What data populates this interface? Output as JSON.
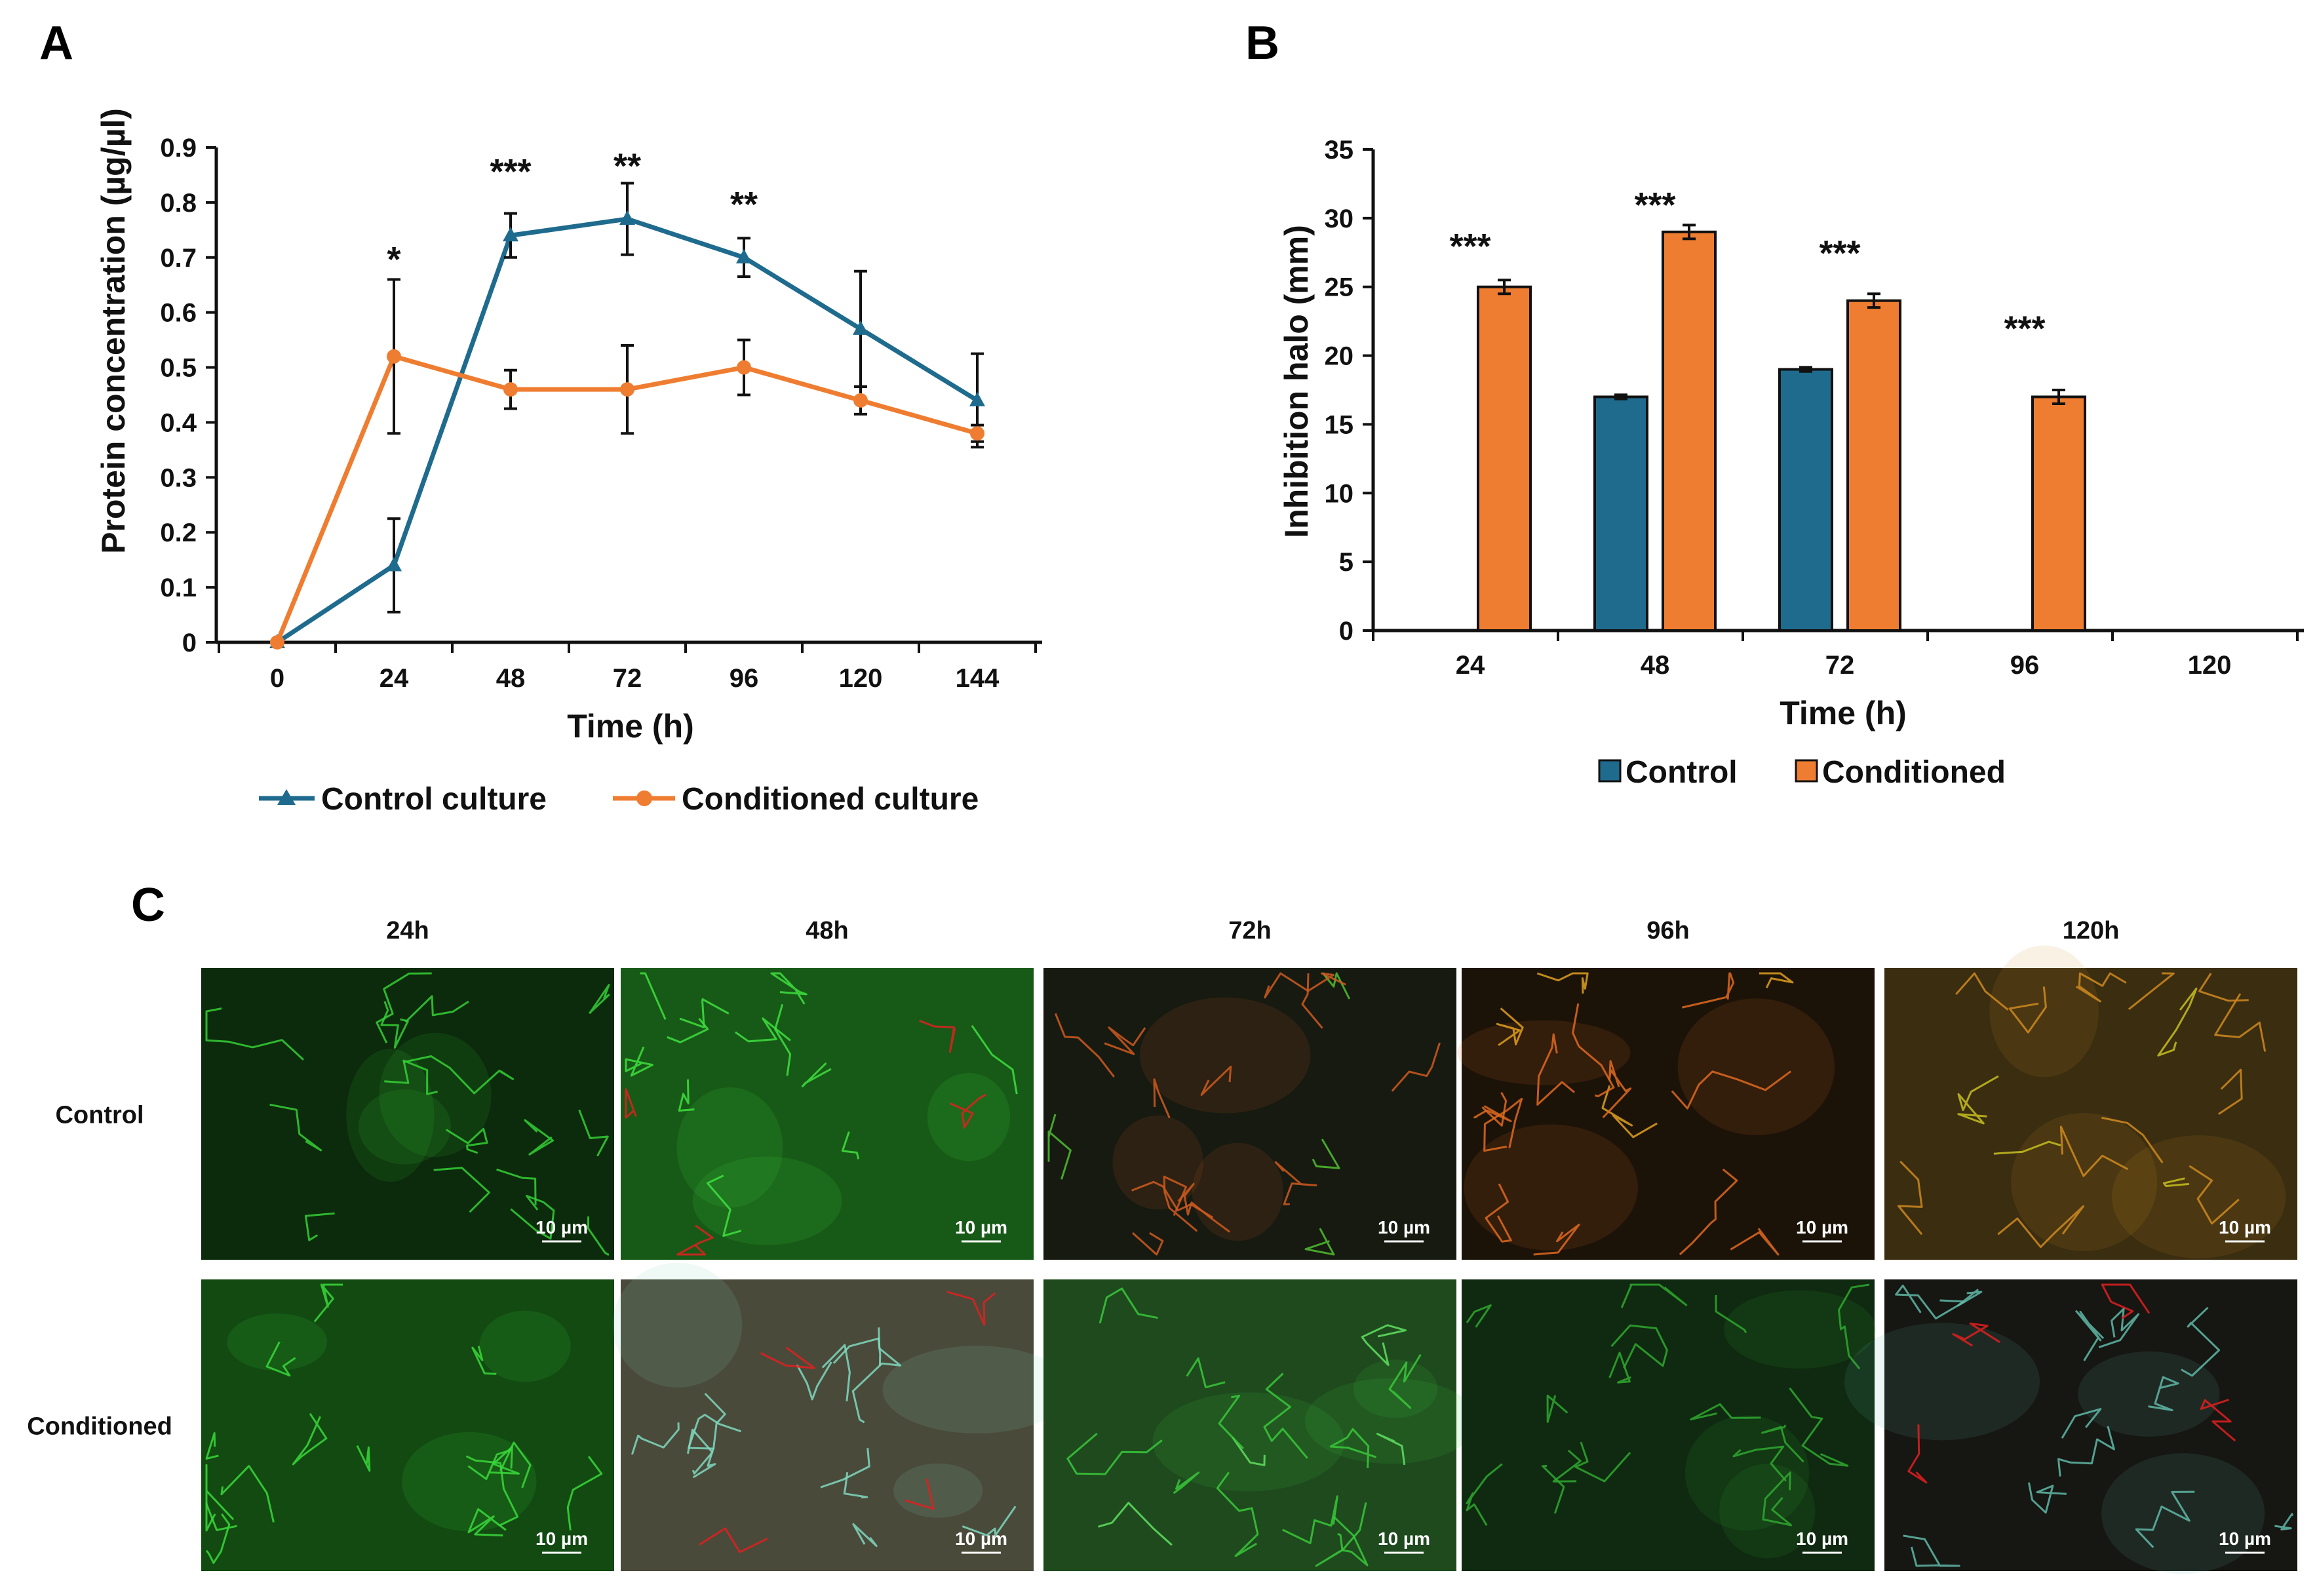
{
  "panels": {
    "a_letter": "A",
    "b_letter": "B",
    "c_letter": "C"
  },
  "colors": {
    "control": "#1f6b8e",
    "conditioned": "#ef7d31",
    "error_bar": "#111111",
    "bar_outline": "#111111"
  },
  "chart_data": [
    {
      "type": "line",
      "panel": "A",
      "xlabel": "Time (h)",
      "ylabel": "Protein concentration (µg/µl)",
      "x": [
        0,
        24,
        48,
        72,
        96,
        120,
        144
      ],
      "ylim": [
        0,
        0.9
      ],
      "yticks": [
        "0",
        "0.1",
        "0.2",
        "0.3",
        "0.4",
        "0.5",
        "0.6",
        "0.7",
        "0.8",
        "0.9"
      ],
      "xticks": [
        "0",
        "24",
        "48",
        "72",
        "96",
        "120",
        "144"
      ],
      "grid": false,
      "legend": "bottom",
      "series": [
        {
          "name": "Control culture",
          "marker": "triangle",
          "values": [
            0.0,
            0.14,
            0.74,
            0.77,
            0.7,
            0.57,
            0.44
          ],
          "errors": [
            0.0,
            0.085,
            0.04,
            0.065,
            0.035,
            0.105,
            0.085
          ]
        },
        {
          "name": "Conditioned culture",
          "marker": "circle",
          "values": [
            0.0,
            0.52,
            0.46,
            0.46,
            0.5,
            0.44,
            0.38
          ],
          "errors": [
            0.0,
            0.14,
            0.035,
            0.08,
            0.05,
            0.025,
            0.015
          ]
        }
      ],
      "significance": [
        {
          "x": 24,
          "label": "*",
          "y": 0.72
        },
        {
          "x": 48,
          "label": "***",
          "y": 0.88
        },
        {
          "x": 72,
          "label": "**",
          "y": 0.89
        },
        {
          "x": 96,
          "label": "**",
          "y": 0.82
        }
      ]
    },
    {
      "type": "bar",
      "panel": "B",
      "xlabel": "Time (h)",
      "ylabel": "Inhibition halo (mm)",
      "categories": [
        "24",
        "48",
        "72",
        "96",
        "120"
      ],
      "ylim": [
        0,
        35
      ],
      "yticks": [
        "0",
        "5",
        "10",
        "15",
        "20",
        "25",
        "30",
        "35"
      ],
      "grid": false,
      "legend": "bottom",
      "series": [
        {
          "name": "Control",
          "values": [
            0,
            17,
            19,
            0,
            0
          ],
          "errors": [
            0,
            0.15,
            0.15,
            0,
            0
          ]
        },
        {
          "name": "Conditioned",
          "values": [
            25,
            29,
            24,
            17,
            0
          ],
          "errors": [
            0.5,
            0.5,
            0.5,
            0.5,
            0
          ]
        }
      ],
      "significance": [
        {
          "category": "24",
          "label": "***",
          "y": 29
        },
        {
          "category": "48",
          "label": "***",
          "y": 32
        },
        {
          "category": "72",
          "label": "***",
          "y": 28.5
        },
        {
          "category": "96",
          "label": "***",
          "y": 23
        }
      ]
    }
  ],
  "micrographs": {
    "columns": [
      "24h",
      "48h",
      "72h",
      "96h",
      "120h"
    ],
    "rows": [
      "Control",
      "Conditioned"
    ],
    "scale_bar": "10 µm",
    "tints": [
      [
        "#0c2a0c",
        "#175a17",
        "#161a10",
        "#1c1308",
        "#3a2d10"
      ],
      [
        "#124a12",
        "#4a4a3a",
        "#1e4a1e",
        "#0f2a10",
        "#161612"
      ]
    ],
    "fibers": [
      [
        "#35d035",
        "#40e040",
        "#d05a20",
        "#e06a20",
        "#d08a20"
      ],
      [
        "#3ad83a",
        "#7fd8c0",
        "#3ac83a",
        "#2fa82f",
        "#5fb8a8"
      ]
    ],
    "accents": [
      [
        "#35d035",
        "#e02020",
        "#50c030",
        "#e0a020",
        "#c8c020"
      ],
      [
        "#3ad83a",
        "#e02020",
        "#60e060",
        "#2fa82f",
        "#e02020"
      ]
    ]
  }
}
